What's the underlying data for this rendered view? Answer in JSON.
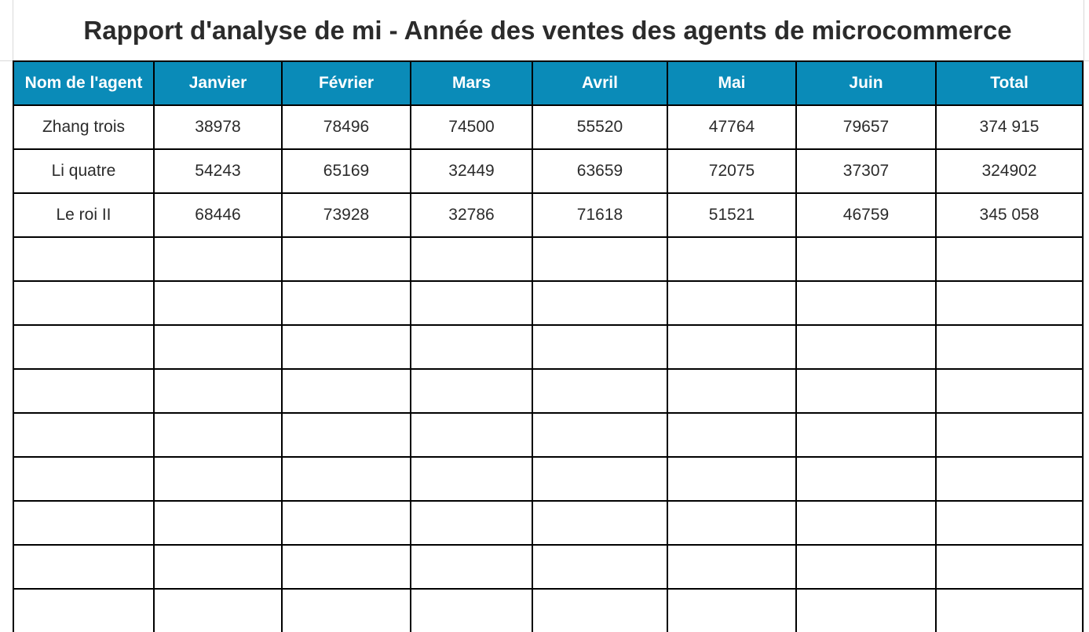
{
  "report": {
    "title": "Rapport d'analyse de mi - Année des ventes des agents de microcommerce"
  },
  "table": {
    "header_color": "#0a8bb8",
    "columns": [
      "Nom de l'agent",
      "Janvier",
      "Février",
      "Mars",
      "Avril",
      "Mai",
      "Juin",
      "Total"
    ],
    "rows": [
      [
        "Zhang trois",
        "38978",
        "78496",
        "74500",
        "55520",
        "47764",
        "79657",
        "374 915"
      ],
      [
        "Li quatre",
        "54243",
        "65169",
        "32449",
        "63659",
        "72075",
        "37307",
        "324902"
      ],
      [
        "Le roi II",
        "68446",
        "73928",
        "32786",
        "71618",
        "51521",
        "46759",
        "345 058"
      ]
    ],
    "empty_row_count": 9
  }
}
